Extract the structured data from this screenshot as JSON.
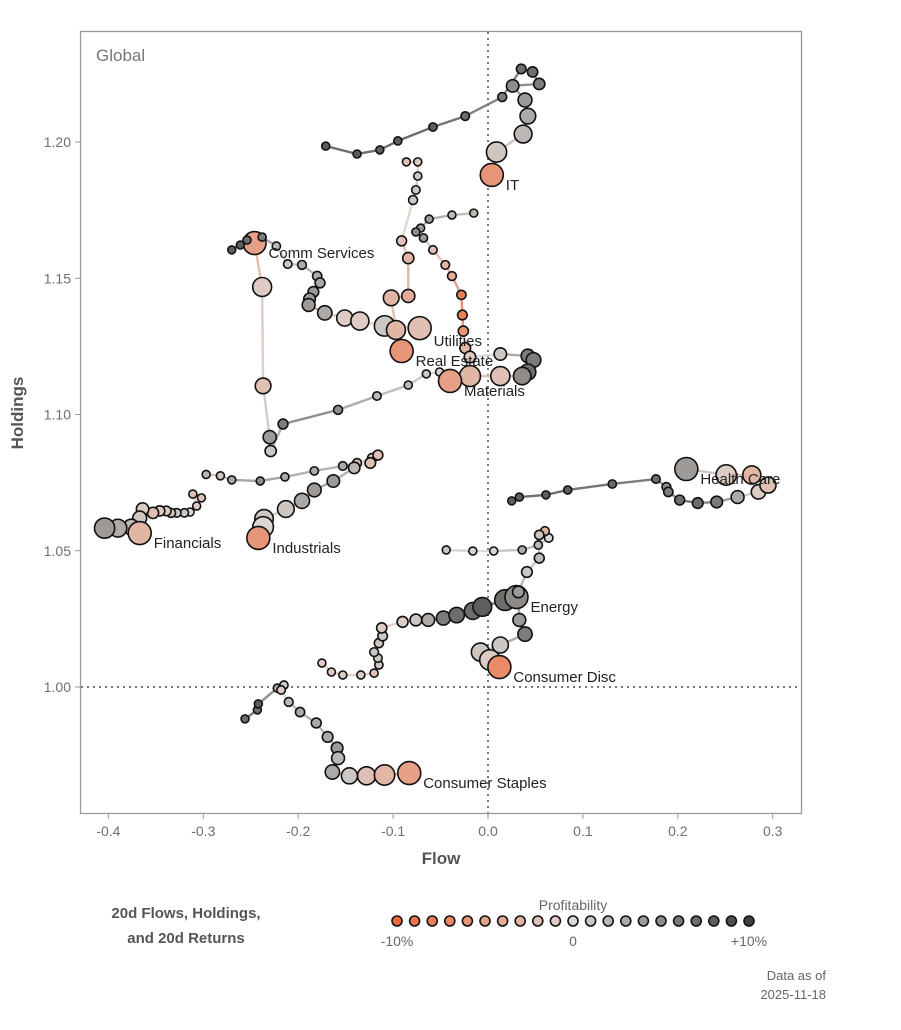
{
  "chart_data": {
    "type": "scatter",
    "title": "Global",
    "xlabel": "Flow",
    "ylabel": "Holdings",
    "xlim": [
      -0.43,
      0.33
    ],
    "ylim": [
      0.955,
      1.235
    ],
    "xticks": [
      "-0.4",
      "-0.3",
      "-0.2",
      "-0.1",
      "0.0",
      "0.1",
      "0.2",
      "0.3"
    ],
    "xtick_values": [
      -0.4,
      -0.3,
      -0.2,
      -0.1,
      0,
      0.1,
      0.2,
      0.3
    ],
    "yticks": [
      "1.00",
      "1.05",
      "1.10",
      "1.15",
      "1.20"
    ],
    "ytick_values": [
      1.0,
      1.05,
      1.1,
      1.15,
      1.2
    ],
    "reference_lines": {
      "x": 0,
      "y": 1.0,
      "style": "dotted"
    },
    "grid": false,
    "point_fields": [
      "flow",
      "holdings",
      "return_pct"
    ],
    "series": [
      {
        "name": "IT",
        "points": [
          [
            -0.171,
            1.1985,
            8
          ],
          [
            -0.138,
            1.1956,
            8
          ],
          [
            -0.114,
            1.1971,
            8
          ],
          [
            -0.095,
            1.2004,
            8
          ],
          [
            -0.058,
            1.2055,
            8
          ],
          [
            -0.024,
            1.2095,
            7
          ],
          [
            0.015,
            1.2165,
            6
          ],
          [
            0.035,
            1.2268,
            7
          ],
          [
            0.047,
            1.2257,
            7
          ],
          [
            0.054,
            1.2213,
            6
          ],
          [
            0.026,
            1.2206,
            5
          ],
          [
            0.039,
            1.2154,
            4
          ],
          [
            0.042,
            1.2095,
            3
          ],
          [
            0.037,
            1.2029,
            2
          ],
          [
            0.009,
            1.1963,
            1
          ],
          [
            0.004,
            1.1879,
            -6
          ]
        ]
      },
      {
        "name": "Comm Services",
        "points": [
          [
            -0.051,
            1.1156,
            0
          ],
          [
            -0.065,
            1.1149,
            1
          ],
          [
            -0.084,
            1.1108,
            2
          ],
          [
            -0.117,
            1.1068,
            2
          ],
          [
            -0.158,
            1.1017,
            5
          ],
          [
            -0.216,
            1.0965,
            6
          ],
          [
            -0.229,
            1.0866,
            1
          ],
          [
            -0.23,
            1.0917,
            4
          ],
          [
            -0.237,
            1.1105,
            -2
          ],
          [
            -0.238,
            1.1468,
            -1
          ],
          [
            -0.246,
            1.1629,
            -5
          ]
        ]
      },
      {
        "name": "Utilities",
        "points": [
          [
            -0.27,
            1.1604,
            8
          ],
          [
            -0.261,
            1.1622,
            8
          ],
          [
            -0.254,
            1.164,
            7
          ],
          [
            -0.238,
            1.1651,
            6
          ],
          [
            -0.223,
            1.1618,
            2
          ],
          [
            -0.211,
            1.1552,
            1
          ],
          [
            -0.196,
            1.1549,
            3
          ],
          [
            -0.18,
            1.1508,
            3
          ],
          [
            -0.177,
            1.1483,
            3
          ],
          [
            -0.184,
            1.145,
            4
          ],
          [
            -0.188,
            1.1424,
            4
          ],
          [
            -0.189,
            1.1402,
            4
          ],
          [
            -0.172,
            1.1373,
            3
          ],
          [
            -0.151,
            1.1354,
            -1
          ],
          [
            -0.135,
            1.1343,
            -1
          ],
          [
            -0.109,
            1.1325,
            1
          ],
          [
            -0.072,
            1.1317,
            -2
          ]
        ]
      },
      {
        "name": "Real Estate",
        "points": [
          [
            -0.086,
            1.1927,
            -2
          ],
          [
            -0.074,
            1.1927,
            -1
          ],
          [
            -0.074,
            1.1875,
            1
          ],
          [
            -0.076,
            1.1824,
            1
          ],
          [
            -0.079,
            1.1787,
            1
          ],
          [
            -0.091,
            1.1637,
            -2
          ],
          [
            -0.084,
            1.1574,
            -3
          ],
          [
            -0.084,
            1.1435,
            -4
          ],
          [
            -0.102,
            1.1428,
            -3
          ],
          [
            -0.097,
            1.131,
            -3
          ],
          [
            -0.091,
            1.1233,
            -6
          ]
        ]
      },
      {
        "name": "Materials",
        "points": [
          [
            -0.015,
            1.1739,
            2
          ],
          [
            -0.038,
            1.1732,
            2
          ],
          [
            -0.062,
            1.1717,
            4
          ],
          [
            -0.071,
            1.1684,
            4
          ],
          [
            -0.076,
            1.167,
            5
          ],
          [
            -0.068,
            1.1648,
            4
          ],
          [
            -0.058,
            1.1604,
            -2
          ],
          [
            -0.045,
            1.1549,
            -3
          ],
          [
            -0.038,
            1.1508,
            -4
          ],
          [
            -0.028,
            1.1439,
            -8
          ],
          [
            -0.027,
            1.1365,
            -8
          ],
          [
            -0.026,
            1.1306,
            -6
          ],
          [
            -0.024,
            1.1244,
            -3
          ],
          [
            -0.019,
            1.1211,
            -1
          ],
          [
            0.013,
            1.1222,
            1
          ],
          [
            0.042,
            1.1215,
            6
          ],
          [
            0.048,
            1.12,
            6
          ],
          [
            0.042,
            1.1156,
            7
          ],
          [
            0.036,
            1.1141,
            5
          ],
          [
            0.013,
            1.1141,
            -2
          ],
          [
            -0.019,
            1.1141,
            -3
          ],
          [
            -0.04,
            1.1123,
            -5
          ]
        ]
      },
      {
        "name": "Health Care",
        "points": [
          [
            0.025,
            1.0683,
            8
          ],
          [
            0.033,
            1.0697,
            8
          ],
          [
            0.061,
            1.0705,
            8
          ],
          [
            0.084,
            1.0723,
            8
          ],
          [
            0.131,
            1.0745,
            7
          ],
          [
            0.177,
            1.0763,
            7
          ],
          [
            0.188,
            1.0734,
            5
          ],
          [
            0.19,
            1.0716,
            6
          ],
          [
            0.202,
            1.0686,
            7
          ],
          [
            0.221,
            1.0675,
            7
          ],
          [
            0.241,
            1.0679,
            6
          ],
          [
            0.263,
            1.0697,
            3
          ],
          [
            0.285,
            1.0716,
            -1
          ],
          [
            0.295,
            1.0741,
            -2
          ],
          [
            0.278,
            1.0778,
            -3
          ],
          [
            0.251,
            1.0778,
            -1
          ],
          [
            0.209,
            1.08,
            4
          ]
        ]
      },
      {
        "name": "Energy",
        "points": [
          [
            -0.175,
            1.0088,
            -1
          ],
          [
            -0.165,
            1.0055,
            -1
          ],
          [
            -0.153,
            1.0044,
            -1
          ],
          [
            -0.134,
            1.0044,
            -1
          ],
          [
            -0.12,
            1.0051,
            -2
          ],
          [
            -0.115,
            1.0081,
            1
          ],
          [
            -0.116,
            1.0106,
            1
          ],
          [
            -0.12,
            1.0128,
            1
          ],
          [
            -0.115,
            1.0161,
            1
          ],
          [
            -0.111,
            1.0187,
            1
          ],
          [
            -0.112,
            1.0217,
            -1
          ],
          [
            -0.09,
            1.0239,
            -1
          ],
          [
            -0.076,
            1.0246,
            1
          ],
          [
            -0.063,
            1.0246,
            3
          ],
          [
            -0.047,
            1.0253,
            6
          ],
          [
            -0.033,
            1.0264,
            7
          ],
          [
            -0.016,
            1.0279,
            7
          ],
          [
            -0.006,
            1.0294,
            8
          ],
          [
            0.018,
            1.0319,
            7
          ],
          [
            0.03,
            1.033,
            5
          ]
        ]
      },
      {
        "name": "Consumer Disc",
        "points": [
          [
            -0.044,
            1.0503,
            1
          ],
          [
            -0.016,
            1.0499,
            0
          ],
          [
            0.006,
            1.0499,
            0
          ],
          [
            0.036,
            1.0503,
            3
          ],
          [
            0.053,
            1.0521,
            2
          ],
          [
            0.064,
            1.0547,
            0
          ],
          [
            0.06,
            1.0572,
            -3
          ],
          [
            0.054,
            1.0558,
            1
          ],
          [
            0.054,
            1.0473,
            2
          ],
          [
            0.041,
            1.0422,
            1
          ],
          [
            0.032,
            1.0349,
            4
          ],
          [
            0.033,
            1.0246,
            4
          ],
          [
            0.039,
            1.0194,
            6
          ],
          [
            0.013,
            1.0154,
            1
          ],
          [
            -0.008,
            1.0128,
            1
          ],
          [
            0.002,
            1.0099,
            -1
          ],
          [
            0.012,
            1.0073,
            -7
          ]
        ]
      },
      {
        "name": "Consumer Staples",
        "points": [
          [
            -0.256,
            0.9883,
            7
          ],
          [
            -0.243,
            0.9916,
            7
          ],
          [
            -0.242,
            0.9938,
            8
          ],
          [
            -0.222,
            0.9996,
            3
          ],
          [
            -0.215,
            1.0007,
            1
          ],
          [
            -0.218,
            0.9989,
            -1
          ],
          [
            -0.21,
            0.9945,
            2
          ],
          [
            -0.198,
            0.9908,
            3
          ],
          [
            -0.181,
            0.9868,
            3
          ],
          [
            -0.169,
            0.9817,
            3
          ],
          [
            -0.159,
            0.9776,
            4
          ],
          [
            -0.158,
            0.9739,
            2
          ],
          [
            -0.164,
            0.9688,
            3
          ],
          [
            -0.146,
            0.9674,
            1
          ],
          [
            -0.128,
            0.9674,
            -2
          ],
          [
            -0.109,
            0.9677,
            -3
          ],
          [
            -0.083,
            0.9684,
            -5
          ]
        ]
      },
      {
        "name": "Industrials",
        "points": [
          [
            -0.297,
            1.078,
            2
          ],
          [
            -0.282,
            1.0775,
            1
          ],
          [
            -0.27,
            1.076,
            3
          ],
          [
            -0.24,
            1.0756,
            5
          ],
          [
            -0.214,
            1.0771,
            3
          ],
          [
            -0.183,
            1.0793,
            3
          ],
          [
            -0.153,
            1.0811,
            3
          ],
          [
            -0.138,
            1.0822,
            2
          ],
          [
            -0.122,
            1.084,
            -1
          ],
          [
            -0.116,
            1.0851,
            -2
          ],
          [
            -0.124,
            1.0822,
            -2
          ],
          [
            -0.141,
            1.0804,
            2
          ],
          [
            -0.163,
            1.0756,
            4
          ],
          [
            -0.183,
            1.0723,
            4
          ],
          [
            -0.196,
            1.0683,
            3
          ],
          [
            -0.213,
            1.0653,
            1
          ],
          [
            -0.236,
            1.0617,
            1
          ],
          [
            -0.237,
            1.0587,
            0
          ],
          [
            -0.242,
            1.0547,
            -6
          ]
        ]
      },
      {
        "name": "Financials",
        "points": [
          [
            -0.302,
            1.0694,
            -2
          ],
          [
            -0.311,
            1.0708,
            -2
          ],
          [
            -0.307,
            1.0664,
            -1
          ],
          [
            -0.314,
            1.0642,
            0
          ],
          [
            -0.32,
            1.0639,
            1
          ],
          [
            -0.328,
            1.0639,
            1
          ],
          [
            -0.334,
            1.0639,
            1
          ],
          [
            -0.339,
            1.0646,
            -1
          ],
          [
            -0.346,
            1.0646,
            -1
          ],
          [
            -0.353,
            1.0639,
            -2
          ],
          [
            -0.364,
            1.0653,
            -1
          ],
          [
            -0.367,
            1.062,
            1
          ],
          [
            -0.376,
            1.0587,
            2
          ],
          [
            -0.39,
            1.0583,
            3
          ],
          [
            -0.404,
            1.0583,
            4
          ],
          [
            -0.367,
            1.0565,
            -3
          ]
        ]
      }
    ],
    "legend": {
      "caption_line1": "20d Flows, Holdings,",
      "caption_line2": "and 20d Returns",
      "color_title": "Profitability",
      "color_min_label": "-10%",
      "color_mid_label": "0",
      "color_max_label": "+10%",
      "color_range": [
        -10,
        10
      ],
      "color_stops": {
        "negative": "#ee6a3c",
        "zero": "#dcd6d2",
        "positive": "#404040"
      },
      "placement": "bottom"
    },
    "footnote_line1": "Data as of",
    "footnote_line2": "2025-11-18"
  }
}
